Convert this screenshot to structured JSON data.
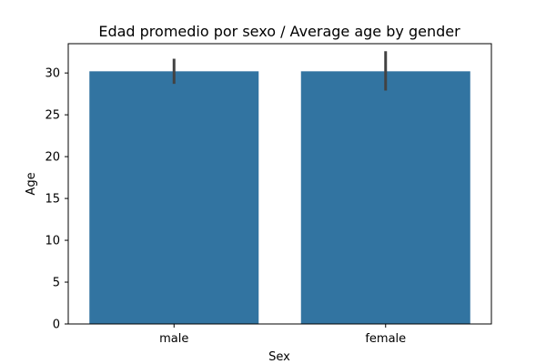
{
  "chart_data": {
    "type": "bar",
    "title": "Edad promedio por sexo / Average age by gender",
    "xlabel": "Sex",
    "ylabel": "Age",
    "categories": [
      "male",
      "female"
    ],
    "series": [
      {
        "values": [
          30.2,
          30.2
        ],
        "ci_low": [
          28.7,
          27.9
        ],
        "ci_high": [
          31.7,
          32.6
        ]
      }
    ],
    "ylim": [
      0,
      33.5
    ],
    "yticks": [
      0,
      5,
      10,
      15,
      20,
      25,
      30
    ],
    "grid": false,
    "bar_color": "#3274a1",
    "errorbar_color": "#424242"
  }
}
